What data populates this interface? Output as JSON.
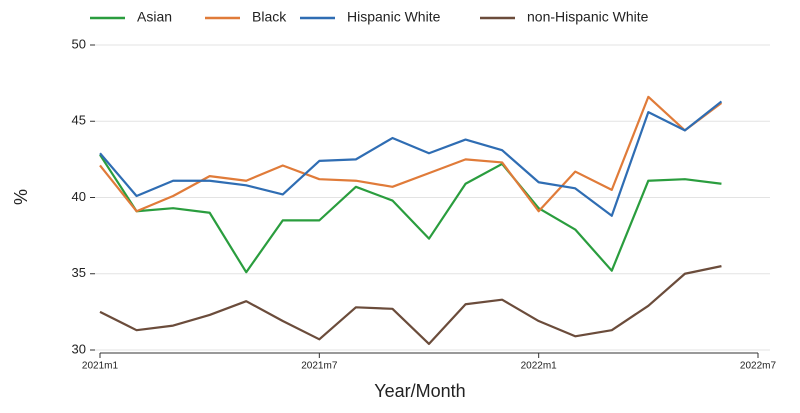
{
  "chart_data": {
    "type": "line",
    "categories": [
      "2021m1",
      null,
      null,
      null,
      null,
      null,
      "2021m7",
      null,
      null,
      null,
      null,
      null,
      "2022m1",
      null,
      null,
      null,
      null,
      null,
      "2022m7"
    ],
    "series": [
      {
        "name": "Asian",
        "color": "#2a9d3e",
        "values": [
          42.8,
          39.1,
          39.3,
          39.0,
          35.1,
          38.5,
          38.5,
          40.7,
          39.8,
          37.3,
          40.9,
          42.2,
          39.3,
          37.9,
          35.2,
          41.1,
          41.2,
          40.9,
          null
        ]
      },
      {
        "name": "Black",
        "color": "#e07b39",
        "values": [
          42.1,
          39.1,
          40.1,
          41.4,
          41.1,
          42.1,
          41.2,
          41.1,
          40.7,
          41.6,
          42.5,
          42.3,
          39.1,
          41.7,
          40.5,
          46.6,
          44.4,
          46.2,
          null
        ]
      },
      {
        "name": "Hispanic White",
        "color": "#2f6db3",
        "values": [
          42.9,
          40.1,
          41.1,
          41.1,
          40.8,
          40.2,
          42.4,
          42.5,
          43.9,
          42.9,
          43.8,
          43.1,
          41.0,
          40.6,
          38.8,
          45.6,
          44.4,
          46.3,
          null
        ]
      },
      {
        "name": "non-Hispanic White",
        "color": "#6b4c3b",
        "values": [
          32.5,
          31.3,
          31.6,
          32.3,
          33.2,
          31.9,
          30.7,
          32.8,
          32.7,
          30.4,
          33.0,
          33.3,
          31.9,
          30.9,
          31.3,
          32.9,
          35.0,
          35.5,
          null
        ]
      }
    ],
    "ylim": [
      30,
      50
    ],
    "yticks": [
      30,
      35,
      40,
      45,
      50
    ],
    "grid": true,
    "y_label": "%",
    "x_label": "Year/Month",
    "legend": "top"
  }
}
